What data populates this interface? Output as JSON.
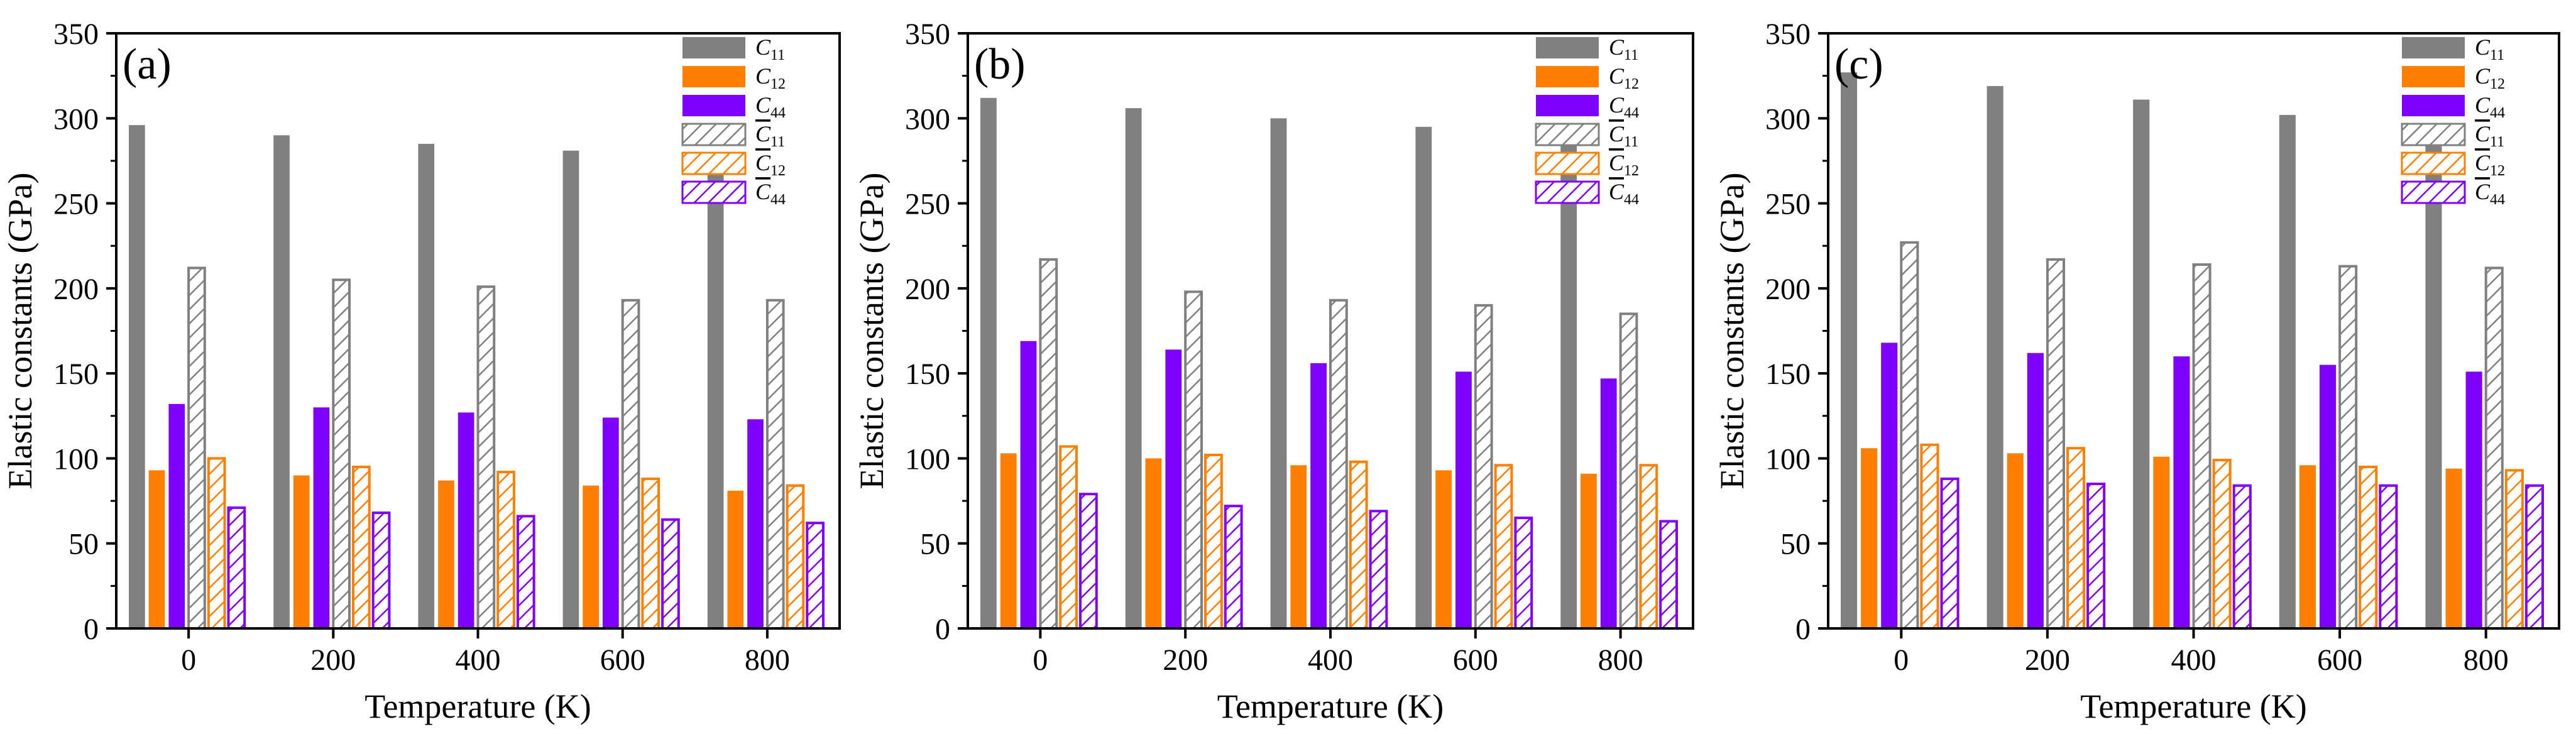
{
  "chart_data": [
    {
      "panel_label": "(a)",
      "type": "bar",
      "xlabel": "Temperature (K)",
      "ylabel": "Elastic constants (GPa)",
      "ylim": [
        0,
        350
      ],
      "yticks": [
        0,
        50,
        100,
        150,
        200,
        250,
        300,
        350
      ],
      "categories": [
        "0",
        "200",
        "400",
        "600",
        "800"
      ],
      "series": [
        {
          "key": "C11",
          "values": [
            296,
            290,
            285,
            281,
            274
          ]
        },
        {
          "key": "C12",
          "values": [
            93,
            90,
            87,
            84,
            81
          ]
        },
        {
          "key": "C44",
          "values": [
            132,
            130,
            127,
            124,
            123
          ]
        },
        {
          "key": "C11bar",
          "values": [
            212,
            205,
            201,
            193,
            193
          ]
        },
        {
          "key": "C12bar",
          "values": [
            100,
            95,
            92,
            88,
            84
          ]
        },
        {
          "key": "C44bar",
          "values": [
            71,
            68,
            66,
            64,
            62
          ]
        }
      ]
    },
    {
      "panel_label": "(b)",
      "type": "bar",
      "xlabel": "Temperature (K)",
      "ylabel": "Elastic constants (GPa)",
      "ylim": [
        0,
        350
      ],
      "yticks": [
        0,
        50,
        100,
        150,
        200,
        250,
        300,
        350
      ],
      "categories": [
        "0",
        "200",
        "400",
        "600",
        "800"
      ],
      "series": [
        {
          "key": "C11",
          "values": [
            312,
            306,
            300,
            295,
            286
          ]
        },
        {
          "key": "C12",
          "values": [
            103,
            100,
            96,
            93,
            91
          ]
        },
        {
          "key": "C44",
          "values": [
            169,
            164,
            156,
            151,
            147
          ]
        },
        {
          "key": "C11bar",
          "values": [
            217,
            198,
            193,
            190,
            185
          ]
        },
        {
          "key": "C12bar",
          "values": [
            107,
            102,
            98,
            96,
            96
          ]
        },
        {
          "key": "C44bar",
          "values": [
            79,
            72,
            69,
            65,
            63
          ]
        }
      ]
    },
    {
      "panel_label": "(c)",
      "type": "bar",
      "xlabel": "Temperature (K)",
      "ylabel": "Elastic constants (GPa)",
      "ylim": [
        0,
        350
      ],
      "yticks": [
        0,
        50,
        100,
        150,
        200,
        250,
        300,
        350
      ],
      "categories": [
        "0",
        "200",
        "400",
        "600",
        "800"
      ],
      "series": [
        {
          "key": "C11",
          "values": [
            327,
            319,
            311,
            302,
            297
          ]
        },
        {
          "key": "C12",
          "values": [
            106,
            103,
            101,
            96,
            94
          ]
        },
        {
          "key": "C44",
          "values": [
            168,
            162,
            160,
            155,
            151
          ]
        },
        {
          "key": "C11bar",
          "values": [
            227,
            217,
            214,
            213,
            212
          ]
        },
        {
          "key": "C12bar",
          "values": [
            108,
            106,
            99,
            95,
            93
          ]
        },
        {
          "key": "C44bar",
          "values": [
            88,
            85,
            84,
            84,
            84
          ]
        }
      ]
    }
  ],
  "legend": [
    {
      "key": "C11",
      "symbol": "C",
      "subscript": "11",
      "overline": false,
      "color": "#808080",
      "style": "solid"
    },
    {
      "key": "C12",
      "symbol": "C",
      "subscript": "12",
      "overline": false,
      "color": "#ff7f00",
      "style": "solid"
    },
    {
      "key": "C44",
      "symbol": "C",
      "subscript": "44",
      "overline": false,
      "color": "#7f00ff",
      "style": "solid"
    },
    {
      "key": "C11bar",
      "symbol": "C",
      "subscript": "11",
      "overline": true,
      "color": "#808080",
      "style": "hatched"
    },
    {
      "key": "C12bar",
      "symbol": "C",
      "subscript": "12",
      "overline": true,
      "color": "#ff7f00",
      "style": "hatched"
    },
    {
      "key": "C44bar",
      "symbol": "C",
      "subscript": "44",
      "overline": true,
      "color": "#7f00ff",
      "style": "hatched"
    }
  ]
}
